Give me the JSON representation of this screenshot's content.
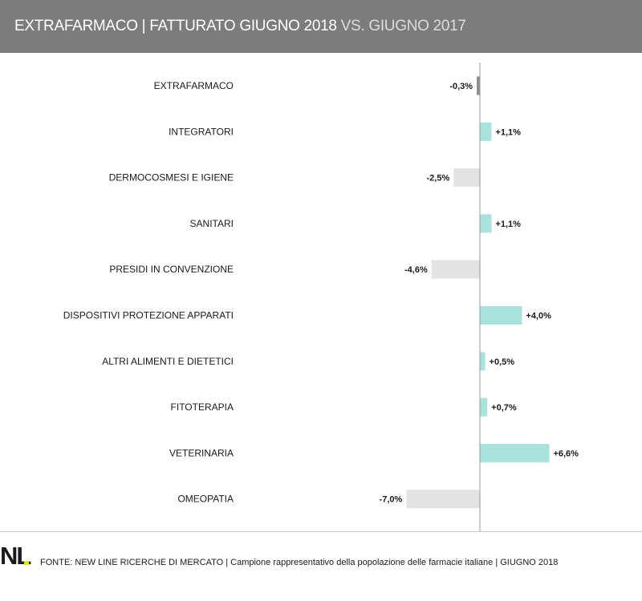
{
  "header": {
    "title_main": "EXTRAFARMACO | FATTURATO GIUGNO 2018",
    "title_light": " VS. GIUGNO 2017"
  },
  "chart_data": {
    "type": "bar",
    "orientation": "horizontal",
    "title": "EXTRAFARMACO | FATTURATO GIUGNO 2018 VS. GIUGNO 2017",
    "categories": [
      "EXTRAFARMACO",
      "INTEGRATORI",
      "DERMOCOSMESI E IGIENE",
      "SANITARI",
      "PRESIDI IN CONVENZIONE",
      "DISPOSITIVI PROTEZIONE APPARATI",
      "ALTRI ALIMENTI E DIETETICI",
      "FITOTERAPIA",
      "VETERINARIA",
      "OMEOPATIA"
    ],
    "values": [
      -0.3,
      1.1,
      -2.5,
      1.1,
      -4.6,
      4.0,
      0.5,
      0.7,
      6.6,
      -7.0
    ],
    "labels": [
      "-0,3%",
      "+1,1%",
      "-2,5%",
      "+1,1%",
      "-4,6%",
      "+4,0%",
      "+0,5%",
      "+0,7%",
      "+6,6%",
      "-7,0%"
    ],
    "colors": {
      "total": "#8c8c8c",
      "positive": "#a8e2dc",
      "negative": "#e3e3e3"
    },
    "xlim": [
      -7.0,
      6.6
    ]
  },
  "footer": {
    "logo_text": "NL",
    "source": "FONTE: NEW LINE RICERCHE DI MERCATO | Campione rappresentativo della popolazione delle farmacie italiane | GIUGNO 2018"
  }
}
